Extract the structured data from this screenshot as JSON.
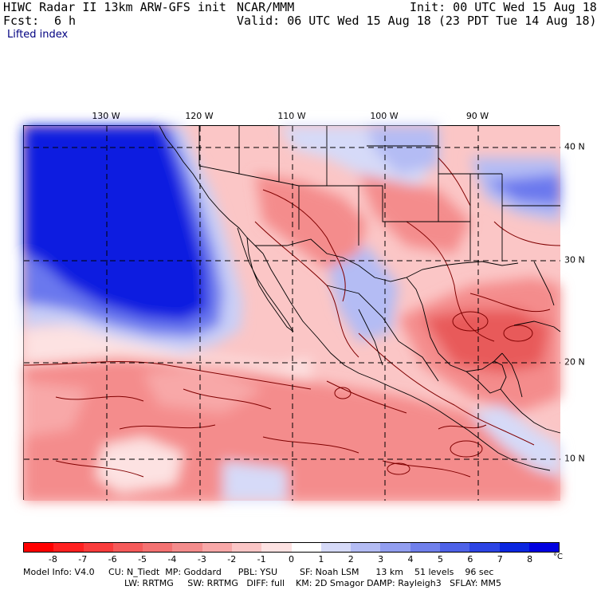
{
  "header": {
    "title": "HIWC Radar II 13km ARW-GFS init",
    "source": "NCAR/MMM",
    "init": "Init: 00 UTC Wed 15 Aug 18",
    "fcst_label": "Fcst:",
    "fcst_value": "6 h",
    "valid": "Valid: 06 UTC Wed 15 Aug 18 (23 PDT Tue 14 Aug 18)",
    "field": "Lifted index"
  },
  "map": {
    "lon_labels": [
      "130 W",
      "120 W",
      "110 W",
      "100 W",
      "90 W"
    ],
    "lat_labels": [
      "40 N",
      "30 N",
      "20 N",
      "10 N"
    ],
    "colors": {
      "deep_positive": "#0a1ee0",
      "positive": "#6a78ee",
      "light_positive": "#c9cff7",
      "neutral": "#ffffff",
      "light_negative": "#fbc6c6",
      "negative": "#f48c8c",
      "strong_negative": "#e85a5a",
      "land_border": "#000000",
      "contour": "#800000"
    }
  },
  "colorbar": {
    "ticks": [
      "-8",
      "-7",
      "-6",
      "-5",
      "-4",
      "-3",
      "-2",
      "-1",
      "0",
      "1",
      "2",
      "3",
      "4",
      "5",
      "6",
      "7",
      "8"
    ],
    "unit": "°C",
    "colors": [
      "#ff0000",
      "#ff2020",
      "#fa3c3c",
      "#f55a5a",
      "#f47272",
      "#f48c8c",
      "#f8a8a8",
      "#fbc6c6",
      "#fde2e2",
      "#ffffff",
      "#d6daf8",
      "#b4bcf4",
      "#929ef0",
      "#7080ec",
      "#4e62e8",
      "#2c44e4",
      "#0a26e0",
      "#0000e0"
    ]
  },
  "model_info": {
    "line1": "Model Info: V4.0     CU: N_Tiedt  MP: Goddard      PBL: YSU        SF: Noah LSM      13 km    51 levels    96 sec",
    "line2": "LW: RRTMG     SW: RRTMG   DIFF: full    KM: 2D Smagor DAMP: Rayleigh3   SFLAY: MM5"
  }
}
